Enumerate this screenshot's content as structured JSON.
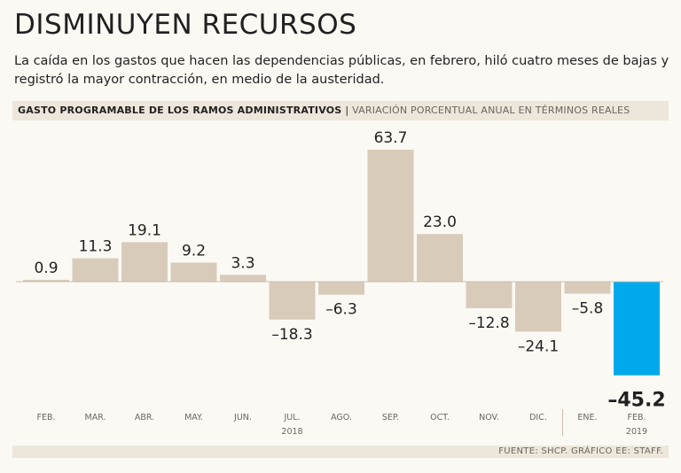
{
  "title": "DISMINUYEN RECURSOS",
  "subtitle": "La caída en los gastos que hacen las dependencias públicas, en febrero, hiló cuatro meses de bajas y registró la mayor contracción, en medio de la austeridad.",
  "header": {
    "strong": "GASTO PROGRAMABLE DE LOS RAMOS ADMINISTRATIVOS",
    "separator": "|",
    "light": "VARIACIÓN PORCENTUAL ANUAL EN TÉRMINOS REALES"
  },
  "source": "FUENTE: SHCP. GRÁFICO EE: STAFF.",
  "colors": {
    "bar": "#d9cbba",
    "highlight": "#00a9ec",
    "baseline": "#c9bfb0",
    "label": "#231f20",
    "tick": "#6b6660"
  },
  "chart_data": {
    "type": "bar",
    "title": "GASTO PROGRAMABLE DE LOS RAMOS ADMINISTRATIVOS",
    "ylabel": "VARIACIÓN PORCENTUAL ANUAL EN TÉRMINOS REALES",
    "categories": [
      "FEB.",
      "MAR.",
      "ABR.",
      "MAY.",
      "JUN.",
      "JUL.",
      "AGO.",
      "SEP.",
      "OCT.",
      "NOV.",
      "DIC.",
      "ENE.",
      "FEB."
    ],
    "values": [
      0.9,
      11.3,
      19.1,
      9.2,
      3.3,
      -18.3,
      -6.3,
      63.7,
      23.0,
      -12.8,
      -24.1,
      -5.8,
      -45.2
    ],
    "value_labels": [
      "0.9",
      "11.3",
      "19.1",
      "9.2",
      "3.3",
      "-18.3",
      "-6.3",
      "63.7",
      "23.0",
      "-12.8",
      "-24.1",
      "-5.8",
      "-45.2"
    ],
    "highlight_index": 12,
    "year_labels": [
      {
        "text": "2018",
        "category_index": 5
      },
      {
        "text": "2019",
        "category_index": 12
      }
    ],
    "year_divider_after_index": 10,
    "ylim": [
      -45.2,
      63.7
    ],
    "grid": false
  }
}
